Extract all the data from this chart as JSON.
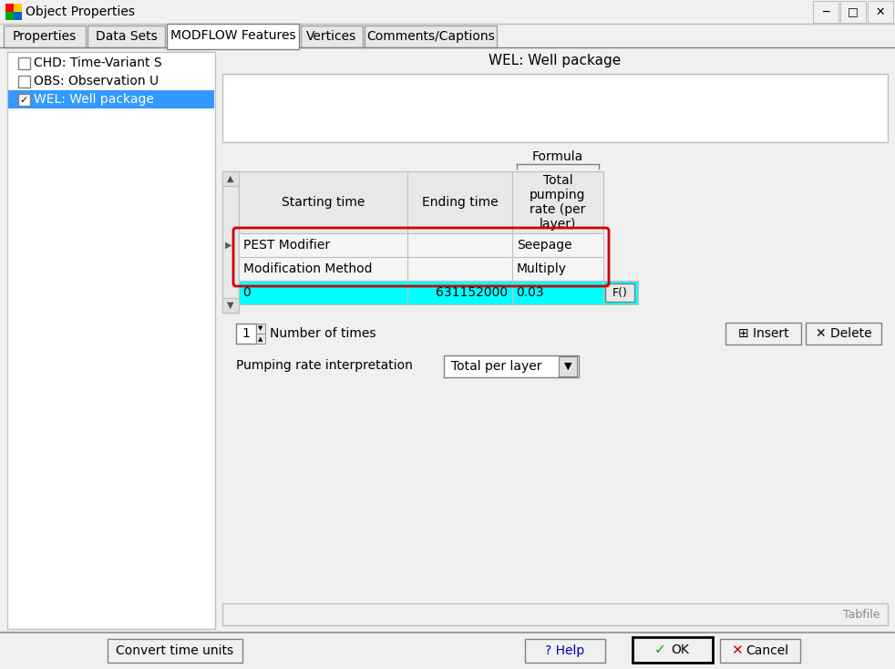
{
  "title": "Object Properties",
  "bg_color": "#f0f0f0",
  "tabs": [
    "Properties",
    "Data Sets",
    "MODFLOW Features",
    "Vertices",
    "Comments/Captions"
  ],
  "active_tab_index": 2,
  "panel_title": "WEL: Well package",
  "tree_items": [
    {
      "label": "CHD: Time-Variant S",
      "checked": false,
      "selected": false
    },
    {
      "label": "OBS: Observation U",
      "checked": false,
      "selected": false
    },
    {
      "label": "WEL: Well package",
      "checked": true,
      "selected": true
    }
  ],
  "formula_label": "Formula",
  "table_headers": [
    "Starting time",
    "Ending time",
    "Total\npumping\nrate (per\nlayer)"
  ],
  "pest_modifier_label": "PEST Modifier",
  "pest_modifier_value": "Seepage",
  "modification_method_label": "Modification Method",
  "modification_method_value": "Multiply",
  "data_row": [
    "0",
    "631152000",
    "0.03",
    "F()"
  ],
  "data_row_bg": "#00ffff",
  "red_box_color": "#cc0000",
  "number_of_times_label": "Number of times",
  "number_of_times_value": "1",
  "insert_label": " Insert",
  "delete_label": " Delete",
  "pumping_rate_label": "Pumping rate interpretation",
  "pumping_rate_value": "Total per layer",
  "tabfile_label": "Tabfile",
  "convert_time_label": "Convert time units",
  "help_label": "? Help",
  "selected_bg": "#3399ff",
  "selected_fg": "#ffffff"
}
